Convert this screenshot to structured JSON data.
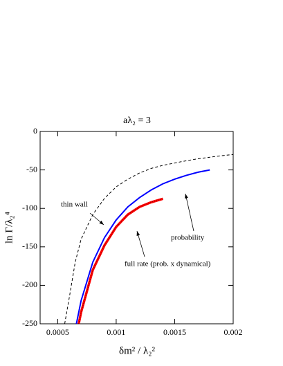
{
  "chart_data": {
    "type": "line",
    "title": "aλ₂ = 3",
    "x_label": "δm² / λ₂²",
    "y_label": "ln Γ/λ₂⁴",
    "xlim": [
      0.00035,
      0.002
    ],
    "ylim": [
      -250,
      0
    ],
    "xticks": [
      0.0005,
      0.001,
      0.0015,
      0.002
    ],
    "yticks": [
      0,
      -50,
      -100,
      -150,
      -200,
      -250
    ],
    "series": [
      {
        "name": "thin wall",
        "color": "#000000",
        "style": "dashed",
        "x": [
          0.00056,
          0.0006,
          0.00065,
          0.0007,
          0.0008,
          0.0009,
          0.001,
          0.0011,
          0.0012,
          0.0013,
          0.0014,
          0.0015,
          0.0016,
          0.0017,
          0.0018,
          0.0019,
          0.002
        ],
        "values": [
          -250,
          -215,
          -170,
          -140,
          -108,
          -87,
          -72,
          -62,
          -54,
          -48,
          -44,
          -41,
          -38,
          -35.5,
          -33.5,
          -31.5,
          -30
        ]
      },
      {
        "name": "probability",
        "color": "#0000ff",
        "style": "solid",
        "x": [
          0.00066,
          0.0007,
          0.0008,
          0.0009,
          0.001,
          0.0011,
          0.0012,
          0.0013,
          0.0014,
          0.0015,
          0.0016,
          0.0017,
          0.0018
        ],
        "values": [
          -250,
          -220,
          -170,
          -138,
          -115,
          -98,
          -86,
          -76,
          -68,
          -62,
          -57,
          -53,
          -50
        ]
      },
      {
        "name": "full rate (prob. x dynamical)",
        "color": "#ff0000",
        "style": "dotted",
        "x": [
          0.00068,
          0.0007,
          0.0008,
          0.0009,
          0.001,
          0.0011,
          0.0012,
          0.0013,
          0.0014
        ],
        "values": [
          -250,
          -235,
          -180,
          -148,
          -124,
          -108,
          -98,
          -92,
          -87.5
        ]
      }
    ]
  }
}
